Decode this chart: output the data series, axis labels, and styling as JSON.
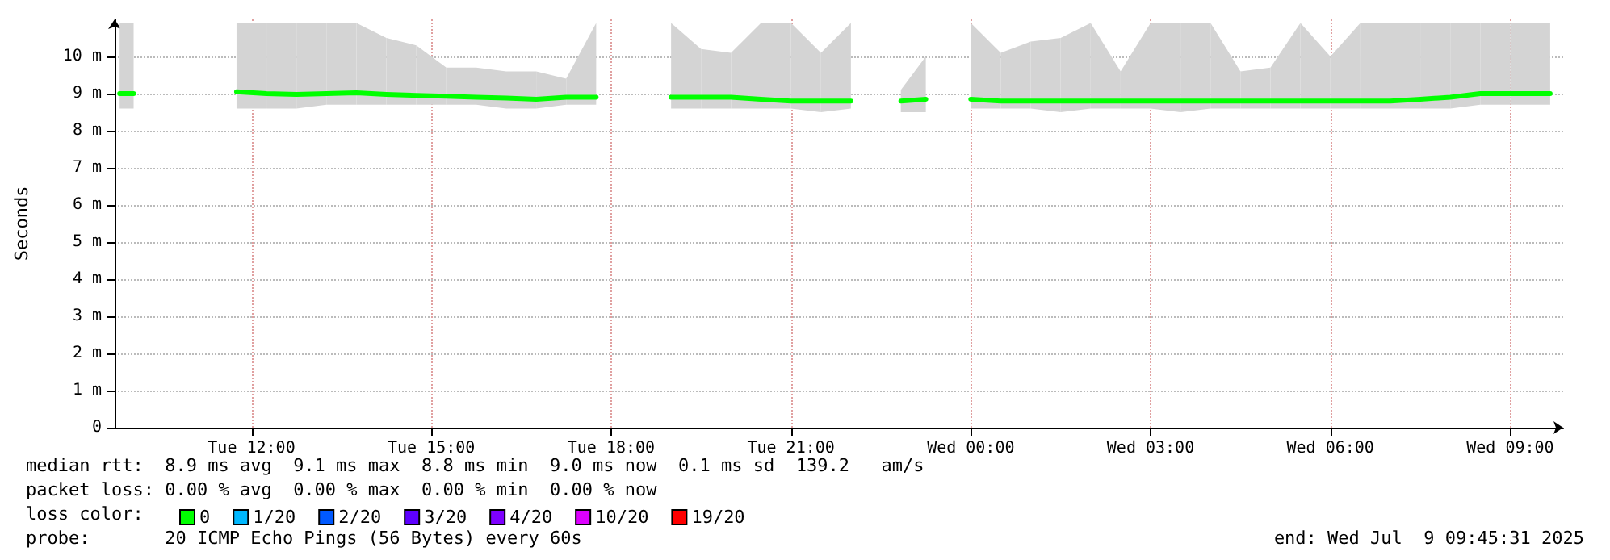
{
  "chart_data": {
    "type": "line",
    "ylabel": "Seconds",
    "xlim": [
      "2025-07-08T09:43",
      "2025-07-09T09:53"
    ],
    "xticks": [
      {
        "value": "2025-07-08T12:00",
        "label": "Tue 12:00"
      },
      {
        "value": "2025-07-08T15:00",
        "label": "Tue 15:00"
      },
      {
        "value": "2025-07-08T18:00",
        "label": "Tue 18:00"
      },
      {
        "value": "2025-07-08T21:00",
        "label": "Tue 21:00"
      },
      {
        "value": "2025-07-09T00:00",
        "label": "Wed 00:00"
      },
      {
        "value": "2025-07-09T03:00",
        "label": "Wed 03:00"
      },
      {
        "value": "2025-07-09T06:00",
        "label": "Wed 06:00"
      },
      {
        "value": "2025-07-09T09:00",
        "label": "Wed 09:00"
      }
    ],
    "ylim": [
      0,
      11
    ],
    "yticks": [
      0,
      {
        "value": 1,
        "label": "1 m"
      },
      {
        "value": 2,
        "label": "2 m"
      },
      {
        "value": 3,
        "label": "3 m"
      },
      {
        "value": 4,
        "label": "4 m"
      },
      {
        "value": 5,
        "label": "5 m"
      },
      {
        "value": 6,
        "label": "6 m"
      },
      {
        "value": 7,
        "label": "7 m"
      },
      {
        "value": 8,
        "label": "8 m"
      },
      {
        "value": 9,
        "label": "9 m"
      },
      {
        "value": 10,
        "label": "10 m"
      }
    ],
    "grid": true,
    "legend": "bottom left",
    "legend_title": "loss color:",
    "marker": "none",
    "line_style": "solid",
    "series": [
      {
        "name": "0",
        "color": "#00ff00",
        "x": [
          "2025-07-08T09:48",
          "2025-07-08T10:02",
          "2025-07-08T10:30",
          "2025-07-08T11:45",
          "2025-07-08T12:15",
          "2025-07-08T12:45",
          "2025-07-08T13:15",
          "2025-07-08T13:45",
          "2025-07-08T14:15",
          "2025-07-08T14:45",
          "2025-07-08T15:15",
          "2025-07-08T15:45",
          "2025-07-08T16:15",
          "2025-07-08T16:45",
          "2025-07-08T17:15",
          "2025-07-08T17:45",
          "2025-07-08T18:15",
          "2025-07-08T19:00",
          "2025-07-08T19:30",
          "2025-07-08T20:00",
          "2025-07-08T20:30",
          "2025-07-08T21:00",
          "2025-07-08T21:30",
          "2025-07-08T22:00",
          "2025-07-08T22:30",
          "2025-07-08T22:50",
          "2025-07-08T23:15",
          "2025-07-08T23:45",
          "2025-07-09T00:00",
          "2025-07-09T00:30",
          "2025-07-09T01:00",
          "2025-07-09T01:30",
          "2025-07-09T02:00",
          "2025-07-09T02:30",
          "2025-07-09T03:00",
          "2025-07-09T03:30",
          "2025-07-09T04:00",
          "2025-07-09T04:30",
          "2025-07-09T05:00",
          "2025-07-09T05:30",
          "2025-07-09T06:00",
          "2025-07-09T06:30",
          "2025-07-09T07:00",
          "2025-07-09T07:30",
          "2025-07-09T08:00",
          "2025-07-09T08:30",
          "2025-07-09T09:00",
          "2025-07-09T09:40"
        ],
        "values": [
          9.0,
          9.0,
          null,
          9.05,
          9.0,
          8.98,
          9.0,
          9.02,
          8.98,
          8.95,
          8.93,
          8.9,
          8.88,
          8.85,
          8.9,
          8.9,
          null,
          8.9,
          8.9,
          8.9,
          8.85,
          8.8,
          8.8,
          8.8,
          null,
          8.8,
          8.85,
          null,
          8.85,
          8.8,
          8.8,
          8.8,
          8.8,
          8.8,
          8.8,
          8.8,
          8.8,
          8.8,
          8.8,
          8.8,
          8.8,
          8.8,
          8.8,
          8.85,
          8.9,
          9.0,
          9.0,
          9.0
        ],
        "lower": [
          8.6,
          8.6,
          null,
          8.6,
          8.6,
          8.6,
          8.7,
          8.7,
          8.7,
          8.7,
          8.7,
          8.7,
          8.6,
          8.6,
          8.7,
          8.7,
          null,
          8.6,
          8.6,
          8.6,
          8.6,
          8.6,
          8.5,
          8.6,
          null,
          8.5,
          8.5,
          null,
          8.6,
          8.6,
          8.6,
          8.5,
          8.6,
          8.6,
          8.6,
          8.5,
          8.6,
          8.6,
          8.6,
          8.6,
          8.6,
          8.6,
          8.6,
          8.6,
          8.6,
          8.7,
          8.7,
          8.7
        ],
        "upper": [
          10.9,
          10.9,
          null,
          10.9,
          10.9,
          10.9,
          10.9,
          10.9,
          10.5,
          10.3,
          9.7,
          9.7,
          9.6,
          9.6,
          9.4,
          10.9,
          null,
          10.9,
          10.2,
          10.1,
          10.9,
          10.9,
          10.1,
          10.9,
          null,
          9.1,
          10.0,
          null,
          10.9,
          10.1,
          10.4,
          10.5,
          10.9,
          9.6,
          10.9,
          10.9,
          10.9,
          9.6,
          9.7,
          10.9,
          10.0,
          10.9,
          10.9,
          10.9,
          10.9,
          10.9,
          10.9,
          10.9
        ]
      },
      {
        "name": "1/20",
        "color": "#00b8ff",
        "values": [
          null
        ]
      },
      {
        "name": "2/20",
        "color": "#0059ff",
        "values": [
          null
        ]
      },
      {
        "name": "3/20",
        "color": "#5e00ff",
        "values": [
          null
        ]
      },
      {
        "name": "4/20",
        "color": "#7e00ff",
        "values": [
          null
        ]
      },
      {
        "name": "10/20",
        "color": "#dd00ff",
        "values": [
          null
        ]
      },
      {
        "name": "19/20",
        "color": "#ff0000",
        "values": [
          null
        ]
      }
    ],
    "annotations": [
      "median rtt:  8.9 ms avg  9.1 ms max  8.8 ms min  9.0 ms now  0.1 ms sd  139.2   am/s",
      "packet loss: 0.00 % avg  0.00 % max  0.00 % min  0.00 % now",
      "probe:       20 ICMP Echo Pings (56 Bytes) every 60s",
      "end: Wed Jul  9 09:45:31 2025"
    ]
  }
}
